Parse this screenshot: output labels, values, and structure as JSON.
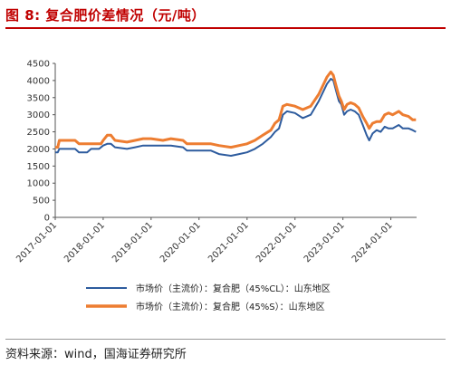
{
  "figure": {
    "label": "图 8:",
    "title": "复合肥价差情况（元/吨）",
    "source": "资料来源：wind，国海证券研究所"
  },
  "colors": {
    "blue": "#2e5c9e",
    "orange": "#ed7d31",
    "title_red": "#c00000"
  },
  "chart_data": {
    "type": "line",
    "xlim": [
      "2017-01-01",
      "2024-07-15"
    ],
    "ylim": [
      0,
      4500
    ],
    "y_ticks": [
      0,
      500,
      1000,
      1500,
      2000,
      2500,
      3000,
      3500,
      4000,
      4500
    ],
    "x_ticks": [
      "2017-01-01",
      "2018-01-01",
      "2019-01-01",
      "2020-01-01",
      "2021-01-01",
      "2022-01-01",
      "2023-01-01",
      "2024-01-01"
    ],
    "grid": false,
    "legend_position": "bottom",
    "series": [
      {
        "name": "市场价（主流价）：复合肥（45%CL）：山东地区",
        "color": "#2e5c9e",
        "points": [
          [
            "2017-01-01",
            1900
          ],
          [
            "2017-01-20",
            1900
          ],
          [
            "2017-02-01",
            2000
          ],
          [
            "2017-06-01",
            2000
          ],
          [
            "2017-07-01",
            1900
          ],
          [
            "2017-09-01",
            1900
          ],
          [
            "2017-10-01",
            2000
          ],
          [
            "2017-12-01",
            2000
          ],
          [
            "2018-01-01",
            2100
          ],
          [
            "2018-02-01",
            2150
          ],
          [
            "2018-03-01",
            2150
          ],
          [
            "2018-04-01",
            2050
          ],
          [
            "2018-07-01",
            2000
          ],
          [
            "2018-09-01",
            2050
          ],
          [
            "2018-11-01",
            2100
          ],
          [
            "2019-01-01",
            2100
          ],
          [
            "2019-03-01",
            2100
          ],
          [
            "2019-06-01",
            2100
          ],
          [
            "2019-09-01",
            2050
          ],
          [
            "2019-10-01",
            1950
          ],
          [
            "2020-01-01",
            1950
          ],
          [
            "2020-04-01",
            1950
          ],
          [
            "2020-06-01",
            1850
          ],
          [
            "2020-09-01",
            1800
          ],
          [
            "2020-11-01",
            1850
          ],
          [
            "2021-01-01",
            1900
          ],
          [
            "2021-03-01",
            2000
          ],
          [
            "2021-05-01",
            2150
          ],
          [
            "2021-07-01",
            2350
          ],
          [
            "2021-08-01",
            2500
          ],
          [
            "2021-09-01",
            2600
          ],
          [
            "2021-10-01",
            3000
          ],
          [
            "2021-11-01",
            3100
          ],
          [
            "2022-01-01",
            3050
          ],
          [
            "2022-03-01",
            2900
          ],
          [
            "2022-05-01",
            3000
          ],
          [
            "2022-07-01",
            3400
          ],
          [
            "2022-09-01",
            3900
          ],
          [
            "2022-10-01",
            4050
          ],
          [
            "2022-10-20",
            4000
          ],
          [
            "2022-11-10",
            3700
          ],
          [
            "2022-12-01",
            3400
          ],
          [
            "2022-12-20",
            3300
          ],
          [
            "2023-01-10",
            3000
          ],
          [
            "2023-02-01",
            3100
          ],
          [
            "2023-03-01",
            3150
          ],
          [
            "2023-04-01",
            3100
          ],
          [
            "2023-05-01",
            3000
          ],
          [
            "2023-06-01",
            2700
          ],
          [
            "2023-07-01",
            2400
          ],
          [
            "2023-07-20",
            2250
          ],
          [
            "2023-08-15",
            2450
          ],
          [
            "2023-09-15",
            2550
          ],
          [
            "2023-10-15",
            2500
          ],
          [
            "2023-11-15",
            2650
          ],
          [
            "2023-12-15",
            2600
          ],
          [
            "2024-01-15",
            2600
          ],
          [
            "2024-03-01",
            2700
          ],
          [
            "2024-04-01",
            2600
          ],
          [
            "2024-05-15",
            2600
          ],
          [
            "2024-06-15",
            2550
          ],
          [
            "2024-07-10",
            2500
          ]
        ]
      },
      {
        "name": "市场价（主流价）：复合肥（45%S）：山东地区",
        "color": "#ed7d31",
        "points": [
          [
            "2017-01-01",
            2050
          ],
          [
            "2017-01-20",
            2050
          ],
          [
            "2017-02-01",
            2250
          ],
          [
            "2017-06-01",
            2250
          ],
          [
            "2017-07-01",
            2150
          ],
          [
            "2017-12-15",
            2150
          ],
          [
            "2018-01-01",
            2250
          ],
          [
            "2018-02-01",
            2400
          ],
          [
            "2018-03-01",
            2400
          ],
          [
            "2018-04-01",
            2250
          ],
          [
            "2018-07-01",
            2200
          ],
          [
            "2018-09-01",
            2250
          ],
          [
            "2018-11-01",
            2300
          ],
          [
            "2019-01-01",
            2300
          ],
          [
            "2019-04-01",
            2250
          ],
          [
            "2019-06-01",
            2300
          ],
          [
            "2019-09-01",
            2250
          ],
          [
            "2019-10-01",
            2150
          ],
          [
            "2020-01-01",
            2150
          ],
          [
            "2020-04-01",
            2150
          ],
          [
            "2020-06-01",
            2100
          ],
          [
            "2020-09-01",
            2050
          ],
          [
            "2020-11-01",
            2100
          ],
          [
            "2021-01-01",
            2150
          ],
          [
            "2021-03-01",
            2250
          ],
          [
            "2021-05-01",
            2400
          ],
          [
            "2021-07-01",
            2550
          ],
          [
            "2021-08-01",
            2750
          ],
          [
            "2021-09-01",
            2850
          ],
          [
            "2021-10-01",
            3250
          ],
          [
            "2021-11-01",
            3300
          ],
          [
            "2022-01-01",
            3250
          ],
          [
            "2022-03-01",
            3150
          ],
          [
            "2022-05-01",
            3250
          ],
          [
            "2022-07-01",
            3600
          ],
          [
            "2022-09-01",
            4100
          ],
          [
            "2022-10-01",
            4250
          ],
          [
            "2022-10-20",
            4150
          ],
          [
            "2022-11-10",
            3850
          ],
          [
            "2022-12-01",
            3550
          ],
          [
            "2022-12-20",
            3400
          ],
          [
            "2023-01-10",
            3150
          ],
          [
            "2023-02-01",
            3300
          ],
          [
            "2023-03-01",
            3350
          ],
          [
            "2023-04-01",
            3300
          ],
          [
            "2023-05-01",
            3200
          ],
          [
            "2023-06-01",
            2950
          ],
          [
            "2023-07-01",
            2750
          ],
          [
            "2023-07-20",
            2600
          ],
          [
            "2023-08-15",
            2750
          ],
          [
            "2023-09-15",
            2800
          ],
          [
            "2023-10-15",
            2800
          ],
          [
            "2023-11-15",
            3000
          ],
          [
            "2023-12-15",
            3050
          ],
          [
            "2024-01-15",
            3000
          ],
          [
            "2024-03-01",
            3100
          ],
          [
            "2024-04-01",
            3000
          ],
          [
            "2024-05-15",
            2950
          ],
          [
            "2024-06-15",
            2850
          ],
          [
            "2024-07-10",
            2850
          ]
        ]
      }
    ]
  }
}
